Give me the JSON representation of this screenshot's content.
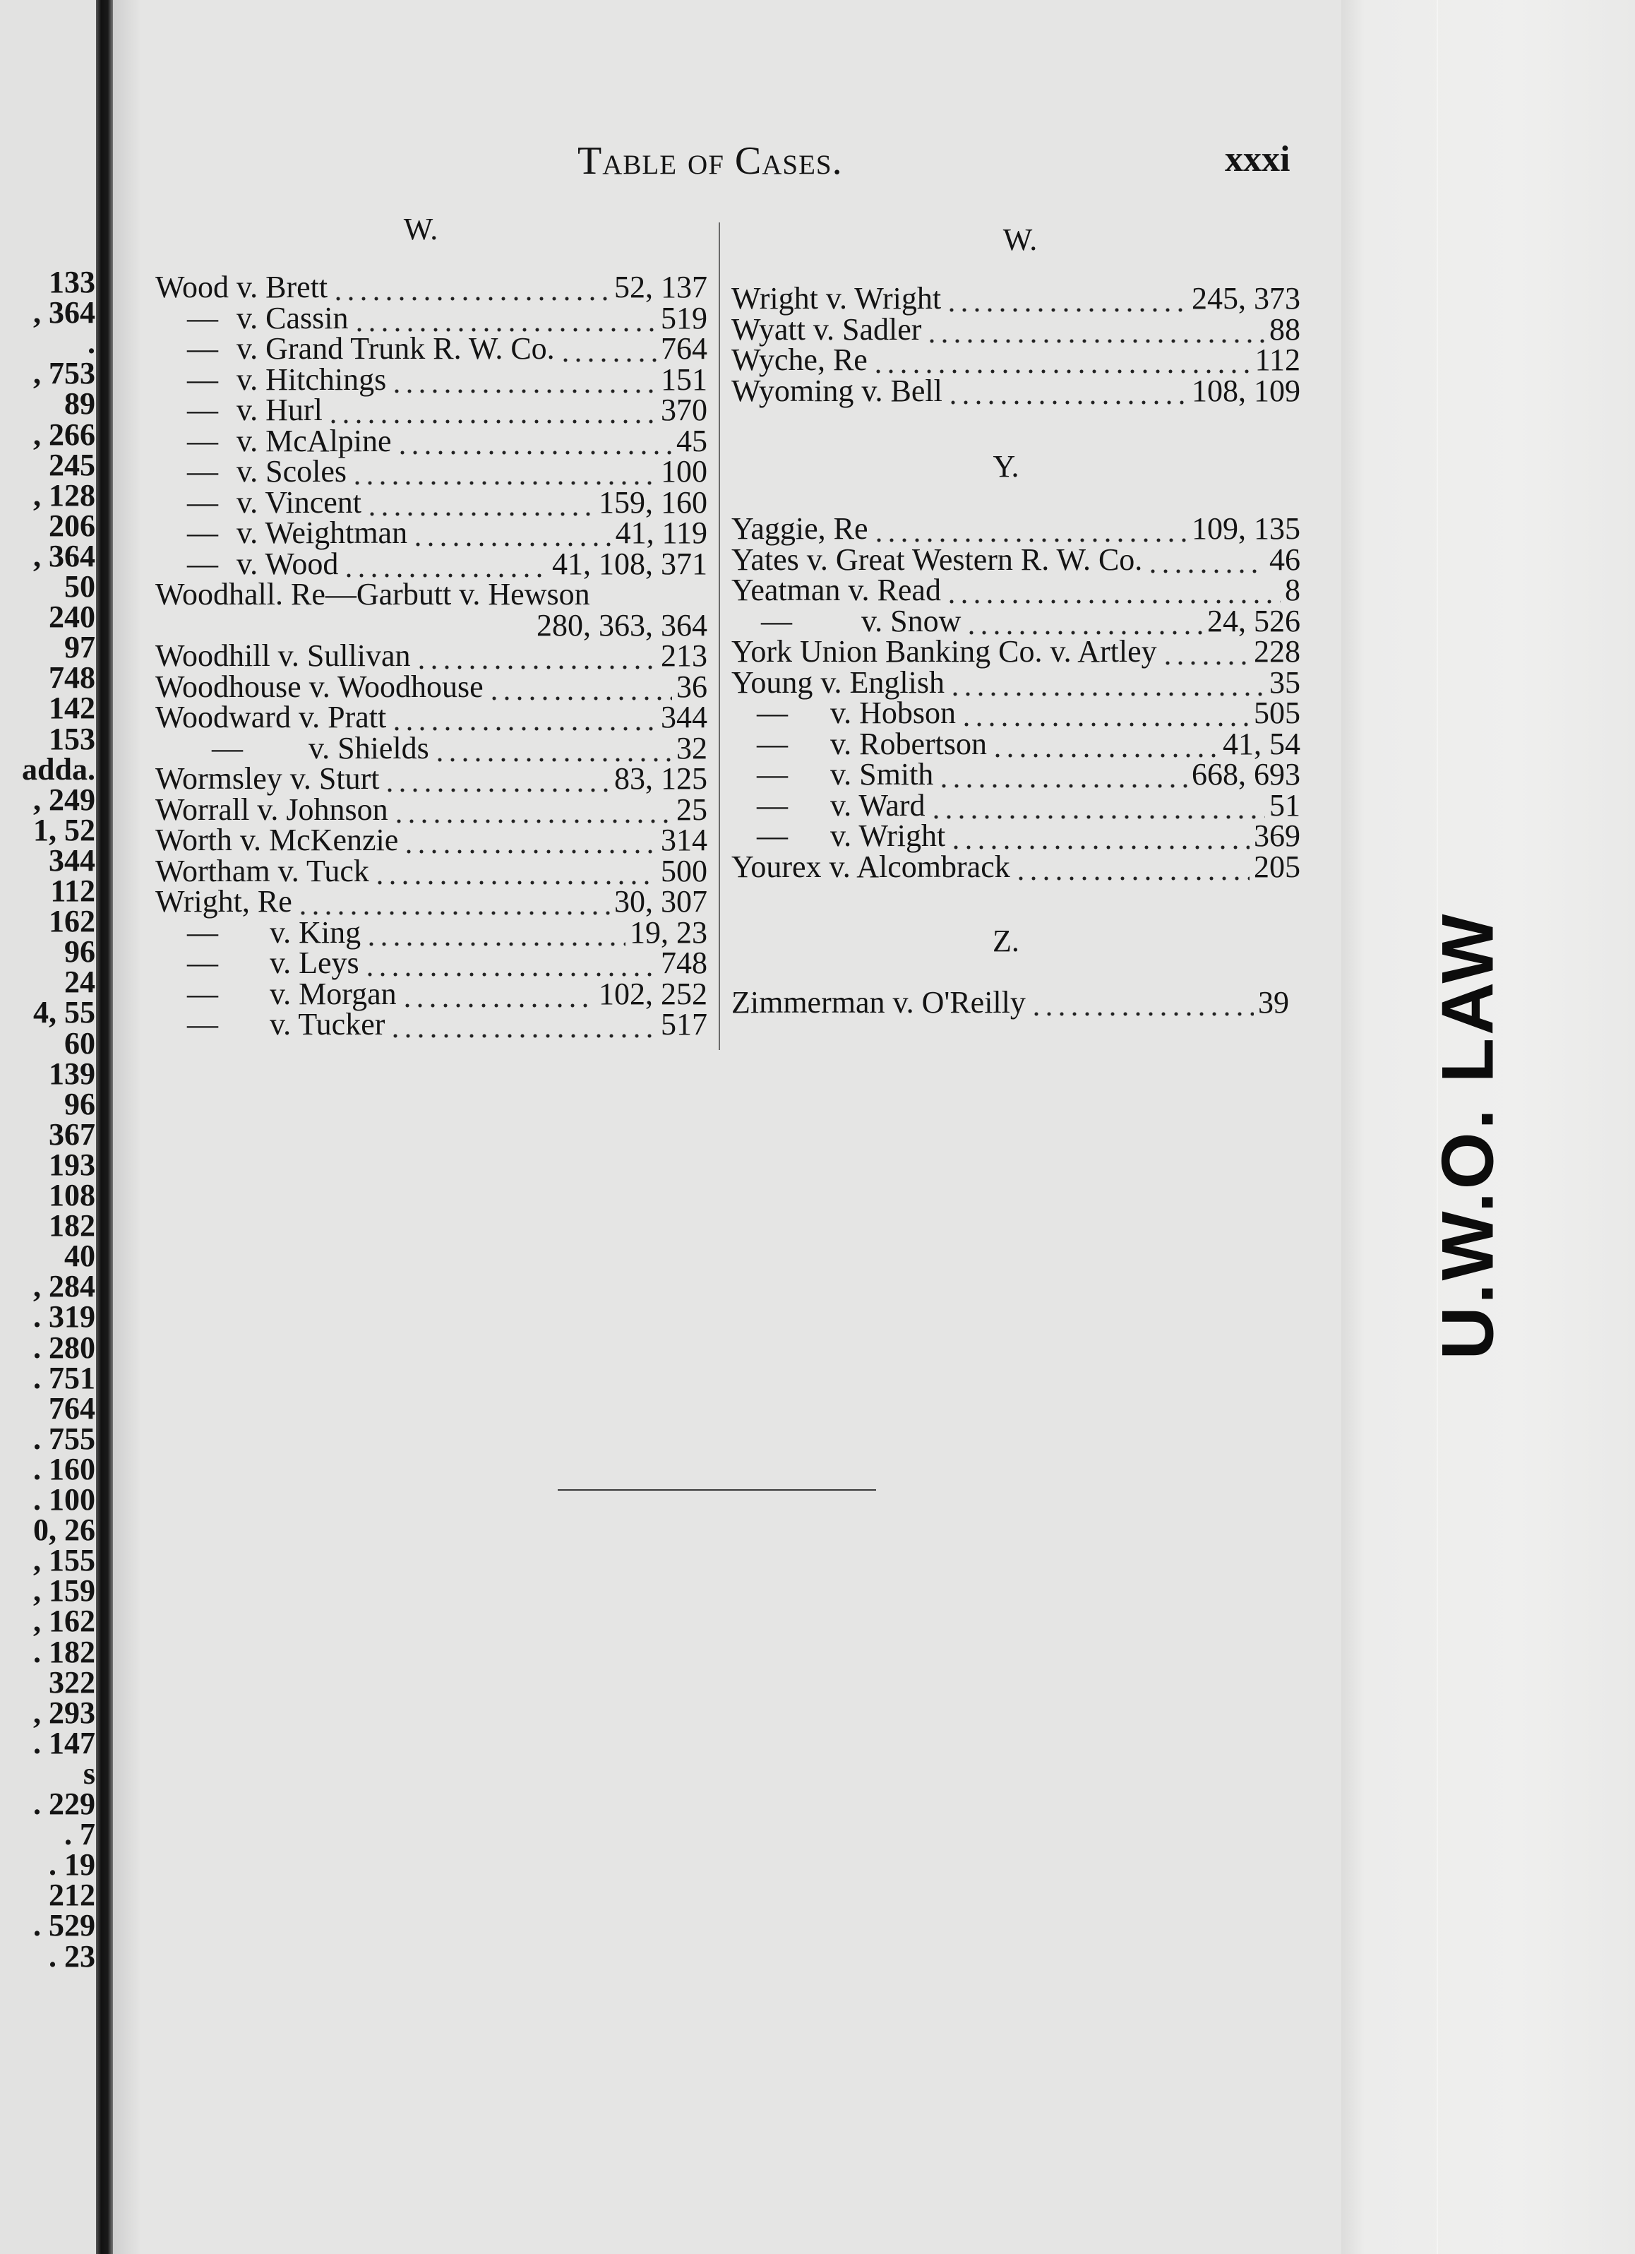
{
  "header": {
    "title": "Table of Cases.",
    "page_number": "xxxi"
  },
  "facing_page_fragments": [
    "133",
    ", 364",
    ".",
    ", 753",
    "89",
    ", 266",
    "245",
    ", 128",
    "206",
    ", 364",
    "50",
    "240",
    "97",
    "748",
    "142",
    "153",
    "adda.",
    ", 249",
    "1, 52",
    "344",
    "112",
    "162",
    "96",
    "24",
    "4, 55",
    "60",
    "139",
    "96",
    "367",
    "193",
    "108",
    "182",
    "40",
    ", 284",
    ". 319",
    ". 280",
    ". 751",
    "764",
    ". 755",
    ". 160",
    ". 100",
    "0, 26",
    ", 155",
    ", 159",
    ", 162",
    ". 182",
    "322",
    ", 293",
    ". 147",
    "s",
    ". 229",
    ". 7",
    ". 19",
    "212",
    ". 529",
    ". 23"
  ],
  "left_column": {
    "heading": "W.",
    "entries": [
      {
        "name": "Wood v. Brett",
        "pages": "52, 137"
      },
      {
        "lead": "—",
        "level": 1,
        "name": "v. Cassin",
        "pages": "519"
      },
      {
        "lead": "—",
        "level": 1,
        "name": "v. Grand Trunk R. W. Co.",
        "pages": "764"
      },
      {
        "lead": "—",
        "level": 1,
        "name": "v. Hitchings",
        "pages": "151"
      },
      {
        "lead": "—",
        "level": 1,
        "name": "v. Hurl",
        "pages": "370"
      },
      {
        "lead": "—",
        "level": 1,
        "name": "v. McAlpine",
        "pages": "45"
      },
      {
        "lead": "—",
        "level": 1,
        "name": "v. Scoles",
        "pages": "100"
      },
      {
        "lead": "—",
        "level": 1,
        "name": "v. Vincent",
        "pages": "159, 160"
      },
      {
        "lead": "—",
        "level": 1,
        "name": "v. Weightman",
        "pages": "41, 119"
      },
      {
        "lead": "—",
        "level": 1,
        "name": "v. Wood",
        "pages": "41, 108, 371"
      },
      {
        "name": "Woodhall. Re—Garbutt v. Hewson",
        "pages": "280, 363, 364",
        "wrap": true
      },
      {
        "name": "Woodhill v. Sullivan",
        "pages": "213"
      },
      {
        "name": "Woodhouse v. Woodhouse",
        "pages": "36"
      },
      {
        "name": "Woodward v. Pratt",
        "pages": "344"
      },
      {
        "lead": "—",
        "level": 2,
        "name": "v. Shields",
        "pages": "32"
      },
      {
        "name": "Wormsley v. Sturt",
        "pages": "83, 125"
      },
      {
        "name": "Worrall v. Johnson",
        "pages": "25"
      },
      {
        "name": "Worth v. McKenzie",
        "pages": "314"
      },
      {
        "name": "Wortham v. Tuck",
        "pages": "500"
      },
      {
        "name": "Wright, Re",
        "pages": "30, 307"
      },
      {
        "lead": "—",
        "level": 3,
        "name": "v. King",
        "pages": "19, 23"
      },
      {
        "lead": "—",
        "level": 3,
        "name": "v. Leys",
        "pages": "748"
      },
      {
        "lead": "—",
        "level": 3,
        "name": "v. Morgan",
        "pages": "102, 252"
      },
      {
        "lead": "—",
        "level": 3,
        "name": "v. Tucker",
        "pages": "517"
      }
    ]
  },
  "right_column": {
    "sections": [
      {
        "heading": "W.",
        "entries": [
          {
            "name": "Wright v. Wright",
            "pages": "245, 373"
          },
          {
            "name": "Wyatt v. Sadler",
            "pages": "88"
          },
          {
            "name": "Wyche, Re",
            "pages": "112"
          },
          {
            "name": "Wyoming v. Bell",
            "pages": "108, 109"
          }
        ]
      },
      {
        "heading": "Y.",
        "entries": [
          {
            "name": "Yaggie, Re",
            "pages": "109, 135"
          },
          {
            "name": "Yates v. Great Western R. W. Co.",
            "pages": "46"
          },
          {
            "name": "Yeatman v. Read",
            "pages": "8"
          },
          {
            "lead": "—",
            "level": 2,
            "name": "v. Snow",
            "pages": "24, 526"
          },
          {
            "name": "York Union Banking Co. v. Artley",
            "pages": "228"
          },
          {
            "name": "Young v. English",
            "pages": "35"
          },
          {
            "lead": "—",
            "level": 1,
            "name": "v. Hobson",
            "pages": "505"
          },
          {
            "lead": "—",
            "level": 1,
            "name": "v. Robertson",
            "pages": "41, 54"
          },
          {
            "lead": "—",
            "level": 1,
            "name": "v. Smith",
            "pages": "668, 693"
          },
          {
            "lead": "—",
            "level": 1,
            "name": "v. Ward",
            "pages": "51"
          },
          {
            "lead": "—",
            "level": 1,
            "name": "v. Wright",
            "pages": "369"
          },
          {
            "name": "Yourex v. Alcombrack",
            "pages": "205"
          }
        ]
      },
      {
        "heading": "Z.",
        "entries": [
          {
            "name": "Zimmerman v. O'Reilly",
            "pages": "39"
          }
        ]
      }
    ]
  },
  "stamp": {
    "text": "U.W.O. LAW"
  },
  "colors": {
    "paper": "#e5e5e4",
    "ink": "#141414",
    "binding": "#111111"
  }
}
